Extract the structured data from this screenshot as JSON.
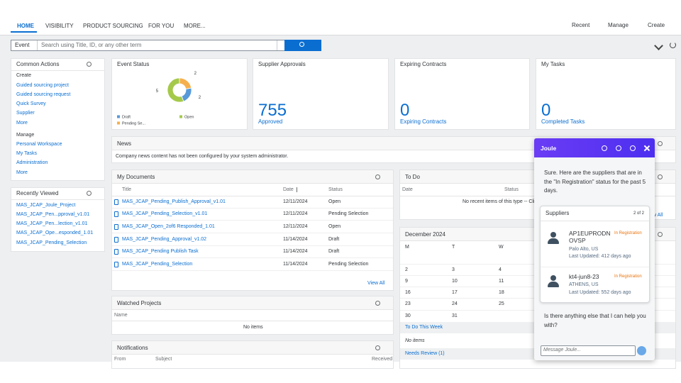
{
  "nav": {
    "tabs": [
      "HOME",
      "VISIBILITY",
      "PRODUCT SOURCING",
      "FOR YOU",
      "MORE..."
    ],
    "right": [
      "Recent",
      "Manage",
      "Create"
    ]
  },
  "search": {
    "scope": "Event",
    "placeholder": "Search using Title, ID, or any other term"
  },
  "tiles": [
    {
      "title": "Event Status"
    },
    {
      "title": "Supplier Approvals",
      "value": 755,
      "label": "Approved"
    },
    {
      "title": "Expiring Contracts",
      "value": 0,
      "label": "Expiring Contracts"
    },
    {
      "title": "My Tasks",
      "value": 0,
      "label": "Completed Tasks"
    }
  ],
  "chart_data": {
    "type": "pie",
    "categories": [
      "Draft",
      "Open",
      "Pending Se..."
    ],
    "values": [
      2,
      5,
      2
    ],
    "colors": [
      "#5899da",
      "#a5c94a",
      "#f5b04d"
    ]
  },
  "common_actions": {
    "title": "Common Actions",
    "groups": [
      {
        "heading": "Create",
        "items": [
          "Guided sourcing project",
          "Guided sourcing request",
          "Quick Survey",
          "Supplier",
          "More"
        ]
      },
      {
        "heading": "Manage",
        "items": [
          "Personal Workspace",
          "My Tasks",
          "Administration",
          "More"
        ]
      }
    ]
  },
  "recently_viewed": {
    "title": "Recently Viewed",
    "items": [
      "MAS_JCAP_Joule_Project",
      "MAS_JCAP_Pen...pproval_v1.01",
      "MAS_JCAP_Pen...lection_v1.01",
      "MAS_JCAP_Ope...esponded_1.01",
      "MAS_JCAP_Pending_Selection"
    ]
  },
  "news": {
    "title": "News",
    "text": "Company news content has not been configured by your system administrator."
  },
  "my_documents": {
    "title": "My Documents",
    "columns": [
      "Title",
      "Date",
      "Status"
    ],
    "rows": [
      [
        "MAS_JCAP_Pending_Publish_Approval_v1.01",
        "12/11/2024",
        "Open"
      ],
      [
        "MAS_JCAP_Pending_Selection_v1.01",
        "12/11/2024",
        "Pending Selection"
      ],
      [
        "MAS_JCAP_Open_2of6 Responded_1.01",
        "12/11/2024",
        "Open"
      ],
      [
        "MAS_JCAP_Pending_Approval_v1.02",
        "11/14/2024",
        "Draft"
      ],
      [
        "MAS_JCAP_Pending Publish Task",
        "11/14/2024",
        "Draft"
      ],
      [
        "MAS_JCAP_Pending_Selection",
        "11/14/2024",
        "Pending Selection"
      ]
    ],
    "view_all": "View All"
  },
  "watched_projects": {
    "title": "Watched Projects",
    "column": "Name",
    "empty": "No items"
  },
  "notifications": {
    "title": "Notifications",
    "columns": [
      "From",
      "Subject",
      "Received"
    ]
  },
  "to_do": {
    "title": "To Do",
    "columns": [
      "Date",
      "Status"
    ],
    "empty": "No recent items of this type -- Click",
    "view_all": "View All"
  },
  "calendar": {
    "title": "December 2024",
    "weekdays": [
      "M",
      "T",
      "W"
    ],
    "weeks": [
      [
        2,
        3,
        4
      ],
      [
        9,
        10,
        11
      ],
      [
        16,
        17,
        18
      ],
      [
        23,
        24,
        25
      ],
      [
        30,
        31
      ]
    ],
    "this_week": "To Do This Week",
    "empty": "No items",
    "needs_review": "Needs Review (1)"
  },
  "joule": {
    "title": "Joule",
    "message": "Sure. Here are the suppliers that are in the \"In Registration\" status for the past 5 days.",
    "card": {
      "title": "Suppliers",
      "count": "2 of 2",
      "suppliers": [
        {
          "name": "AP1EUPRODN OVSP",
          "status": "In Registration",
          "location": "Palo Alto, US",
          "updated": "Last Updated: 412 days ago"
        },
        {
          "name": "kt4-jun8-23",
          "status": "In Registration",
          "location": "ATHENS, US",
          "updated": "Last Updated: 552 days ago"
        }
      ]
    },
    "followup": "Is there anything else that I can help you with?",
    "placeholder": "Message Joule..."
  }
}
